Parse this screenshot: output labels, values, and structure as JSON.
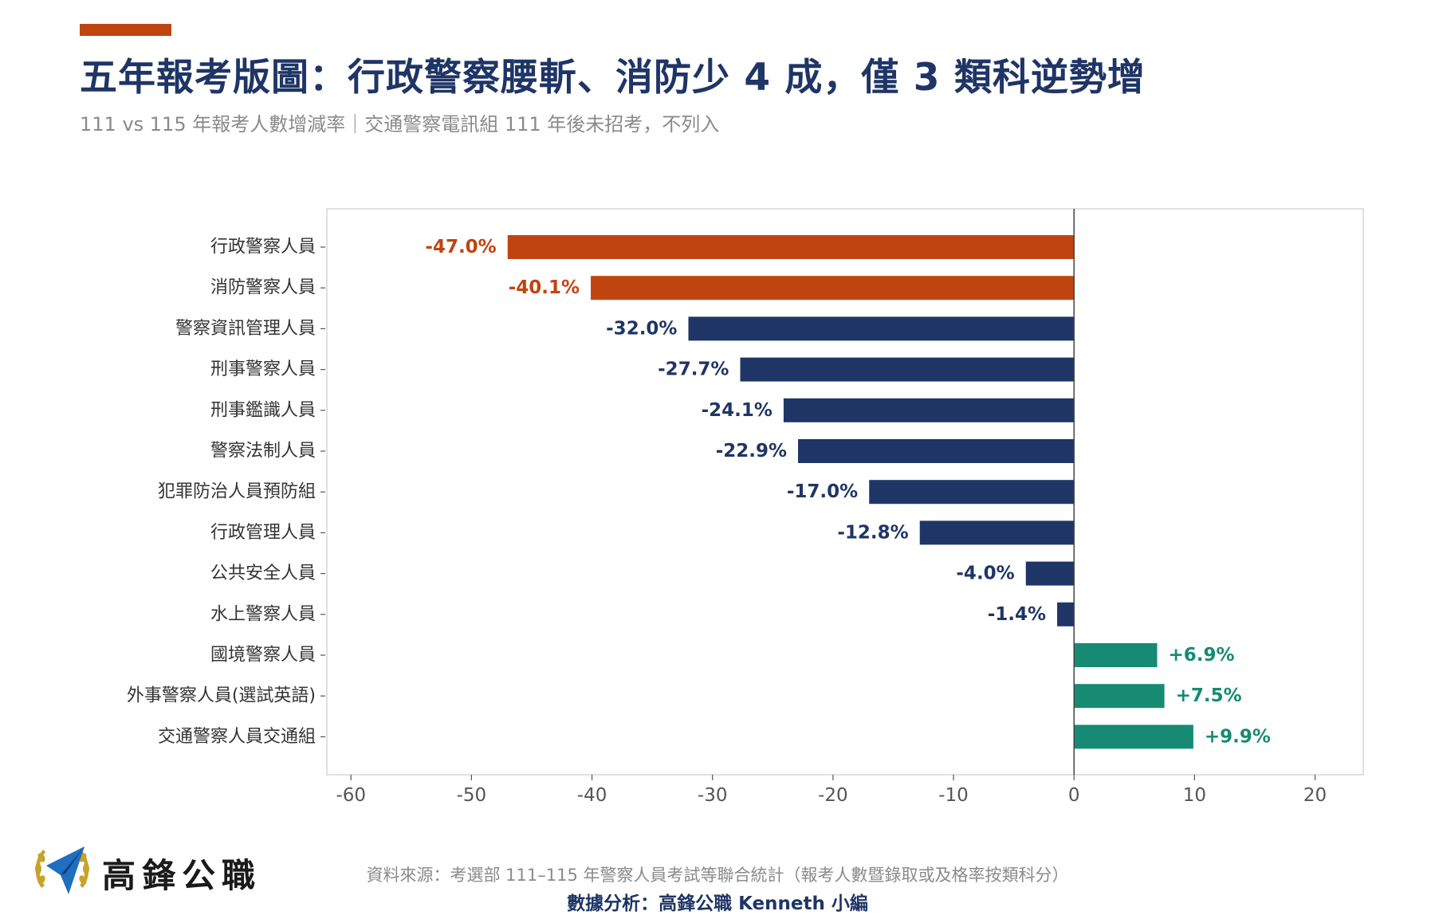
{
  "header": {
    "title": "五年報考版圖：行政警察腰斬、消防少 4 成，僅 3 類科逆勢增",
    "subtitle": "111 vs 115 年報考人數增減率｜交通警察電訊組 111 年後未招考，不列入"
  },
  "colors": {
    "accent": "#c0440f",
    "decline_major": "#c0440f",
    "decline": "#1f3566",
    "increase": "#168a73",
    "title": "#1f3566"
  },
  "chart_data": {
    "type": "bar",
    "orientation": "horizontal",
    "categories": [
      "行政警察人員",
      "消防警察人員",
      "警察資訊管理人員",
      "刑事警察人員",
      "刑事鑑識人員",
      "警察法制人員",
      "犯罪防治人員預防組",
      "行政管理人員",
      "公共安全人員",
      "水上警察人員",
      "國境警察人員",
      "外事警察人員(選試英語)",
      "交通警察人員交通組"
    ],
    "values": [
      -47.0,
      -40.1,
      -32.0,
      -27.7,
      -24.1,
      -22.9,
      -17.0,
      -12.8,
      -4.0,
      -1.4,
      6.9,
      7.5,
      9.9
    ],
    "data_labels": [
      "-47.0%",
      "-40.1%",
      "-32.0%",
      "-27.7%",
      "-24.1%",
      "-22.9%",
      "-17.0%",
      "-12.8%",
      "-4.0%",
      "-1.4%",
      "+6.9%",
      "+7.5%",
      "+9.9%"
    ],
    "bar_colors": [
      "#c0440f",
      "#c0440f",
      "#1f3566",
      "#1f3566",
      "#1f3566",
      "#1f3566",
      "#1f3566",
      "#1f3566",
      "#1f3566",
      "#1f3566",
      "#168a73",
      "#168a73",
      "#168a73"
    ],
    "xlim": [
      -62,
      24
    ],
    "xticks": [
      -60,
      -50,
      -40,
      -30,
      -20,
      -10,
      0,
      10,
      20
    ],
    "xtick_labels": [
      "-60",
      "-50",
      "-40",
      "-30",
      "-20",
      "-10",
      "0",
      "10",
      "20"
    ],
    "grid": false,
    "zero_line": true
  },
  "footer": {
    "brand": "高鋒公職",
    "source": "資料來源：考選部 111–115 年警察人員考試等聯合統計（報考人數暨錄取或及格率按類科分）",
    "analysis": "數據分析：高鋒公職 Kenneth 小編"
  }
}
